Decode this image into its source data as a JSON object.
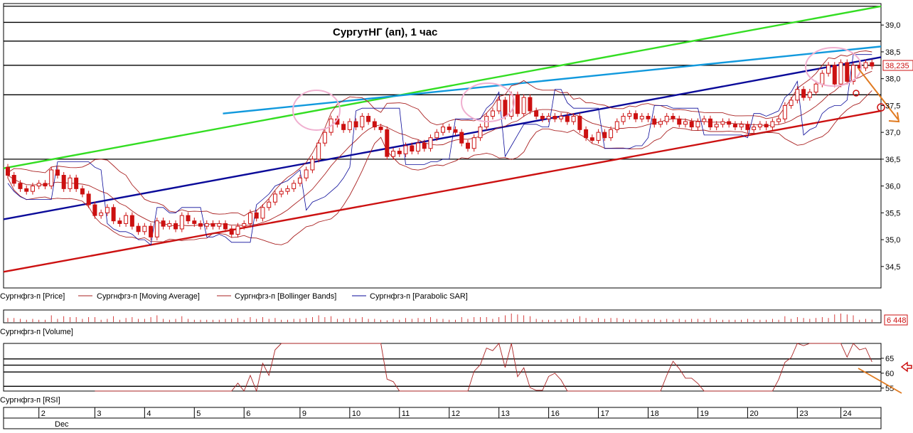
{
  "chart_data": [
    {
      "type": "candlestick",
      "title": "СургутНГ (ап),  1 час",
      "ylim": [
        34.1,
        39.4
      ],
      "yticks": [
        "39,0",
        "38,5",
        "38,0",
        "37,5",
        "37,0",
        "36,5",
        "36,0",
        "35,5",
        "35,0",
        "34,5"
      ],
      "ytick_values": [
        39.0,
        38.5,
        38.0,
        37.5,
        37.0,
        36.5,
        36.0,
        35.5,
        35.0,
        34.5
      ],
      "last_price_label": "38,235",
      "last_price": 38.235,
      "grid": false,
      "horizontal_levels": [
        39.35,
        39.05,
        38.7,
        38.25,
        37.7,
        36.5
      ],
      "trend_lines": [
        {
          "color": "#33dd22",
          "from": [
            0.0,
            36.33
          ],
          "to": [
            1.0,
            39.35
          ]
        },
        {
          "color": "#1199dd",
          "from": [
            0.25,
            37.35
          ],
          "to": [
            1.0,
            38.6
          ]
        },
        {
          "color": "#0a0a99",
          "from": [
            0.0,
            35.38
          ],
          "to": [
            1.0,
            38.4
          ]
        },
        {
          "color": "#cc1111",
          "from": [
            0.0,
            34.4
          ],
          "to": [
            1.0,
            37.4
          ]
        }
      ],
      "candles": [
        [
          36.35,
          36.2
        ],
        [
          36.2,
          36.05
        ],
        [
          36.05,
          35.95
        ],
        [
          35.95,
          35.9
        ],
        [
          35.9,
          36.0
        ],
        [
          36.0,
          36.05
        ],
        [
          36.05,
          36.0
        ],
        [
          36.0,
          36.3
        ],
        [
          36.3,
          36.2
        ],
        [
          36.2,
          35.95
        ],
        [
          35.95,
          36.15
        ],
        [
          36.15,
          35.95
        ],
        [
          35.95,
          35.85
        ],
        [
          35.85,
          35.65
        ],
        [
          35.65,
          35.45
        ],
        [
          35.45,
          35.5
        ],
        [
          35.5,
          35.6
        ],
        [
          35.6,
          35.35
        ],
        [
          35.35,
          35.3
        ],
        [
          35.3,
          35.45
        ],
        [
          35.45,
          35.25
        ],
        [
          35.25,
          35.15
        ],
        [
          35.15,
          35.25
        ],
        [
          35.25,
          35.05
        ],
        [
          35.05,
          35.35
        ],
        [
          35.35,
          35.25
        ],
        [
          35.25,
          35.3
        ],
        [
          35.3,
          35.2
        ],
        [
          35.2,
          35.45
        ],
        [
          35.45,
          35.35
        ],
        [
          35.35,
          35.3
        ],
        [
          35.3,
          35.25
        ],
        [
          35.25,
          35.3
        ],
        [
          35.3,
          35.25
        ],
        [
          35.25,
          35.3
        ],
        [
          35.3,
          35.2
        ],
        [
          35.2,
          35.1
        ],
        [
          35.1,
          35.25
        ],
        [
          35.25,
          35.3
        ],
        [
          35.3,
          35.5
        ],
        [
          35.5,
          35.4
        ],
        [
          35.4,
          35.6
        ],
        [
          35.6,
          35.7
        ],
        [
          35.7,
          35.85
        ],
        [
          35.85,
          35.9
        ],
        [
          35.9,
          35.95
        ],
        [
          35.95,
          36.05
        ],
        [
          36.05,
          36.15
        ],
        [
          36.15,
          36.3
        ],
        [
          36.3,
          36.5
        ],
        [
          36.5,
          36.8
        ],
        [
          36.8,
          37.0
        ],
        [
          37.0,
          37.25
        ],
        [
          37.25,
          37.15
        ],
        [
          37.15,
          37.05
        ],
        [
          37.05,
          37.2
        ],
        [
          37.2,
          37.1
        ],
        [
          37.1,
          37.3
        ],
        [
          37.3,
          37.2
        ],
        [
          37.2,
          37.1
        ],
        [
          37.1,
          37.05
        ],
        [
          37.05,
          36.55
        ],
        [
          36.55,
          36.65
        ],
        [
          36.65,
          36.6
        ],
        [
          36.6,
          36.75
        ],
        [
          36.75,
          36.65
        ],
        [
          36.65,
          36.8
        ],
        [
          36.8,
          36.7
        ],
        [
          36.7,
          36.9
        ],
        [
          36.9,
          37.0
        ],
        [
          37.0,
          37.1
        ],
        [
          37.1,
          37.05
        ],
        [
          37.05,
          37.0
        ],
        [
          37.0,
          36.8
        ],
        [
          36.8,
          36.7
        ],
        [
          36.7,
          36.9
        ],
        [
          36.9,
          37.1
        ],
        [
          37.1,
          37.3
        ],
        [
          37.3,
          37.4
        ],
        [
          37.4,
          37.6
        ],
        [
          37.6,
          37.3
        ],
        [
          37.3,
          37.7
        ],
        [
          37.7,
          37.35
        ],
        [
          37.35,
          37.65
        ],
        [
          37.65,
          37.4
        ],
        [
          37.4,
          37.3
        ],
        [
          37.3,
          37.25
        ],
        [
          37.25,
          37.3
        ],
        [
          37.3,
          37.25
        ],
        [
          37.25,
          37.3
        ],
        [
          37.3,
          37.2
        ],
        [
          37.2,
          37.3
        ],
        [
          37.3,
          37.05
        ],
        [
          37.05,
          36.9
        ],
        [
          36.9,
          36.85
        ],
        [
          36.85,
          37.0
        ],
        [
          37.0,
          36.9
        ],
        [
          36.9,
          37.05
        ],
        [
          37.05,
          37.2
        ],
        [
          37.2,
          37.3
        ],
        [
          37.3,
          37.35
        ],
        [
          37.35,
          37.25
        ],
        [
          37.25,
          37.3
        ],
        [
          37.3,
          37.25
        ],
        [
          37.25,
          37.15
        ],
        [
          37.15,
          37.2
        ],
        [
          37.2,
          37.3
        ],
        [
          37.3,
          37.25
        ],
        [
          37.25,
          37.15
        ],
        [
          37.15,
          37.2
        ],
        [
          37.2,
          37.1
        ],
        [
          37.1,
          37.2
        ],
        [
          37.2,
          37.25
        ],
        [
          37.25,
          37.1
        ],
        [
          37.1,
          37.15
        ],
        [
          37.15,
          37.2
        ],
        [
          37.2,
          37.15
        ],
        [
          37.15,
          37.1
        ],
        [
          37.1,
          37.15
        ],
        [
          37.15,
          37.05
        ],
        [
          37.05,
          37.1
        ],
        [
          37.1,
          37.15
        ],
        [
          37.15,
          37.1
        ],
        [
          37.1,
          37.2
        ],
        [
          37.2,
          37.25
        ],
        [
          37.25,
          37.5
        ],
        [
          37.5,
          37.6
        ],
        [
          37.6,
          37.8
        ],
        [
          37.8,
          37.65
        ],
        [
          37.65,
          37.75
        ],
        [
          37.75,
          37.9
        ],
        [
          37.9,
          38.1
        ],
        [
          38.1,
          38.25
        ],
        [
          38.25,
          37.9
        ],
        [
          37.9,
          38.3
        ],
        [
          38.3,
          37.95
        ],
        [
          37.95,
          38.25
        ],
        [
          38.25,
          38.2
        ],
        [
          38.2,
          38.3
        ],
        [
          38.3,
          38.235
        ]
      ],
      "xticks": [
        "2",
        "3",
        "4",
        "5",
        "6",
        "9",
        "10",
        "11",
        "12",
        "13",
        "16",
        "17",
        "18",
        "19",
        "20",
        "23",
        "24"
      ],
      "xtick_index": [
        5,
        14,
        22,
        30,
        38,
        47,
        55,
        63,
        71,
        79,
        87,
        95,
        103,
        111,
        119,
        127,
        134
      ],
      "month_label": "Dec",
      "legend": [
        {
          "label": "Сургнфгз-п [Price]",
          "color": "#cc1111"
        },
        {
          "label": "Сургнфгз-п [Moving Average]",
          "color": "#aa2222"
        },
        {
          "label": "Сургнфгз-п [Bollinger Bands]",
          "color": "#aa2222"
        },
        {
          "label": "Сургнфгз-п [Parabolic SAR]",
          "color": "#0a0a99"
        }
      ]
    },
    {
      "type": "bar",
      "series": [
        {
          "name": "Сургнфгз-п [Volume]"
        }
      ],
      "last_value_label": "6 448",
      "last_value": 6448
    },
    {
      "type": "line",
      "series": [
        {
          "name": "Сургнфгз-п [RSI]"
        }
      ],
      "ylim": [
        54,
        70
      ],
      "yticks": [
        "65",
        "60",
        "55"
      ],
      "ytick_values": [
        65,
        60,
        55
      ],
      "horizontal_levels": [
        64.8,
        62.7,
        60.4,
        55.6
      ]
    }
  ],
  "colors": {
    "up": "#cc1111",
    "down": "#cc1111",
    "axis": "#000000",
    "ma": "#aa2222",
    "sar": "#0a0a99",
    "annotation_pink": "#f0b0d0",
    "annotation_orange": "#e07a20"
  }
}
